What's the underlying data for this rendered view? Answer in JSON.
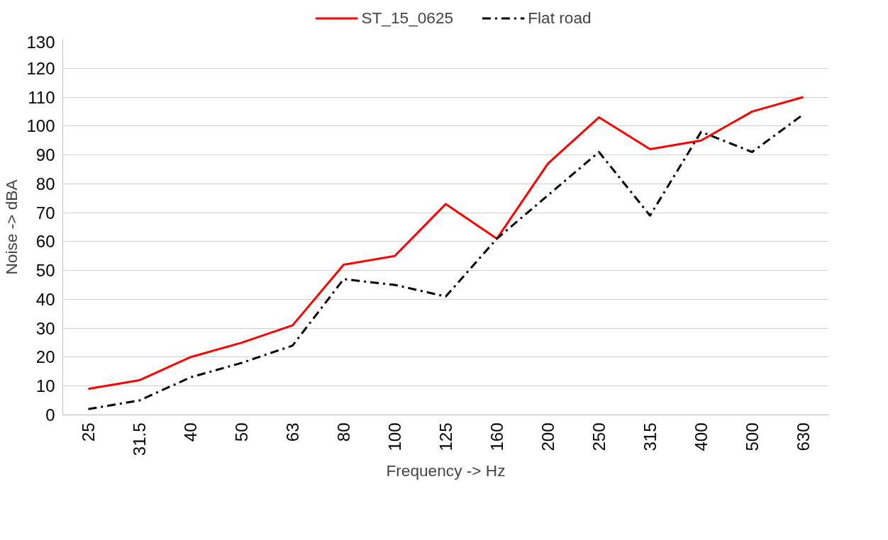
{
  "chart_data": {
    "type": "line",
    "xlabel": "Frequency -> Hz",
    "ylabel": "Noise -> dBA",
    "categories": [
      "25",
      "31.5",
      "40",
      "50",
      "63",
      "80",
      "100",
      "125",
      "160",
      "200",
      "250",
      "315",
      "400",
      "500",
      "630"
    ],
    "series": [
      {
        "name": "ST_15_0625",
        "color": "#ff0000",
        "line_style": "solid",
        "values": [
          9,
          12,
          20,
          25,
          31,
          52,
          55,
          73,
          61,
          87,
          103,
          92,
          95,
          105,
          110
        ]
      },
      {
        "name": "Flat road",
        "color": "#000000",
        "line_style": "dashdot",
        "values": [
          2,
          5,
          13,
          18,
          24,
          47,
          45,
          41,
          61,
          76,
          91,
          69,
          98,
          91,
          104
        ]
      }
    ],
    "ylim": [
      0,
      130
    ],
    "yticks": [
      0,
      10,
      20,
      30,
      40,
      50,
      60,
      70,
      80,
      90,
      100,
      110,
      120,
      130
    ],
    "grid": "y",
    "legend": "top",
    "marker": "none"
  }
}
